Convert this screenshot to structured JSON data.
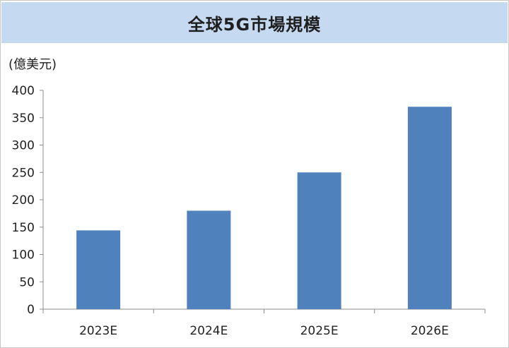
{
  "chart_data": {
    "type": "bar",
    "title": "全球5G市場規模",
    "ylabel": "(億美元)",
    "xlabel": "",
    "categories": [
      "2023E",
      "2024E",
      "2025E",
      "2026E"
    ],
    "values": [
      144,
      180,
      250,
      370
    ],
    "ylim": [
      0,
      400
    ],
    "yticks": [
      0,
      50,
      100,
      150,
      200,
      250,
      300,
      350,
      400
    ],
    "bar_color": "#4f81bd",
    "grid": false,
    "legend": "none"
  }
}
